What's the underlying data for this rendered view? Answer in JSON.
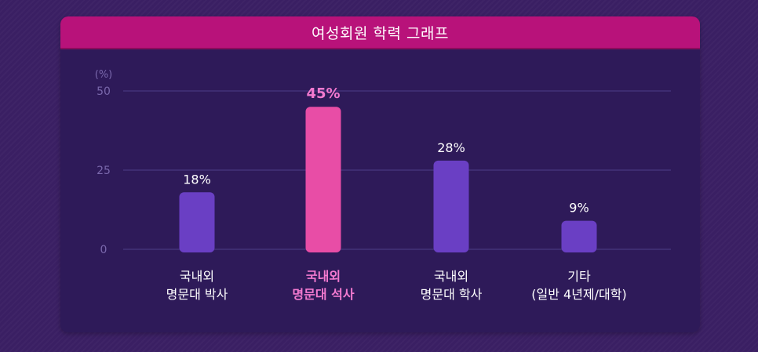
{
  "colors": {
    "background": "#3a1f63",
    "panel": "#2e1a59",
    "header": "#b8127a",
    "bar_default": "#6a3fc4",
    "bar_highlight": "#e84da6",
    "label_default": "#ffffff",
    "label_highlight": "#f37ad0",
    "axis_text": "#7a68ac",
    "grid": "#4e3d89"
  },
  "chart_data": {
    "type": "bar",
    "title": "여성회원 학력 그래프",
    "y_unit_label": "(%)",
    "ylim": [
      0,
      50
    ],
    "yticks": [
      0,
      25,
      50
    ],
    "grid": true,
    "categories": [
      [
        "국내외",
        "명문대 박사"
      ],
      [
        "국내외",
        "명문대 석사"
      ],
      [
        "국내외",
        "명문대 학사"
      ],
      [
        "기타",
        "(일반 4년제/대학)"
      ]
    ],
    "values": [
      18,
      45,
      28,
      9
    ],
    "data_labels": [
      "18%",
      "45%",
      "28%",
      "9%"
    ],
    "highlight_index": 1
  }
}
